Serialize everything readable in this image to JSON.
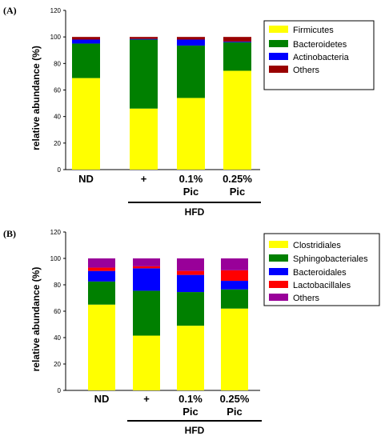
{
  "panels": [
    {
      "label": "(A)"
    },
    {
      "label": "(B)"
    }
  ],
  "chart_data": [
    {
      "type": "bar",
      "stacked": true,
      "categories": [
        [
          "ND"
        ],
        [
          "+"
        ],
        [
          "0.1%",
          "Pic"
        ],
        [
          "0.25%",
          "Pic"
        ]
      ],
      "ylabel": "relative abundance (%)",
      "ylim": [
        0,
        120
      ],
      "yticks": [
        "0",
        "20",
        "40",
        "60",
        "80",
        "100",
        "120"
      ],
      "group_label": "HFD",
      "legend_position": "top-right",
      "series": [
        {
          "name": "Firmicutes",
          "color": "#ffff00",
          "values": [
            69,
            46,
            54,
            74.5
          ]
        },
        {
          "name": "Bacteroidetes",
          "color": "#008000",
          "values": [
            26,
            52,
            39.5,
            21.5
          ]
        },
        {
          "name": "Actinobacteria",
          "color": "#0000ff",
          "values": [
            3,
            0.5,
            4.5,
            0.5
          ]
        },
        {
          "name": "Others",
          "color": "#990000",
          "values": [
            2,
            1.5,
            2,
            3.5
          ]
        }
      ]
    },
    {
      "type": "bar",
      "stacked": true,
      "categories": [
        [
          "ND"
        ],
        [
          "+"
        ],
        [
          "0.1%",
          "Pic"
        ],
        [
          "0.25%",
          "Pic"
        ]
      ],
      "ylabel": "relative abundance (%)",
      "ylim": [
        0,
        120
      ],
      "yticks": [
        "0",
        "20",
        "40",
        "60",
        "80",
        "100",
        "120"
      ],
      "group_label": "HFD",
      "legend_position": "top-right",
      "series": [
        {
          "name": "Clostridiales",
          "color": "#ffff00",
          "values": [
            65,
            41.5,
            49,
            62
          ]
        },
        {
          "name": "Sphingobacteriales",
          "color": "#008000",
          "values": [
            17.5,
            34,
            25.5,
            14.5
          ]
        },
        {
          "name": "Bacteroidales",
          "color": "#0000ff",
          "values": [
            8,
            17,
            13,
            6.5
          ]
        },
        {
          "name": "Lactobacillales",
          "color": "#ff0000",
          "values": [
            2.5,
            1.5,
            3,
            8
          ]
        },
        {
          "name": "Others",
          "color": "#990099",
          "values": [
            7,
            6,
            9.5,
            9
          ]
        }
      ]
    }
  ]
}
